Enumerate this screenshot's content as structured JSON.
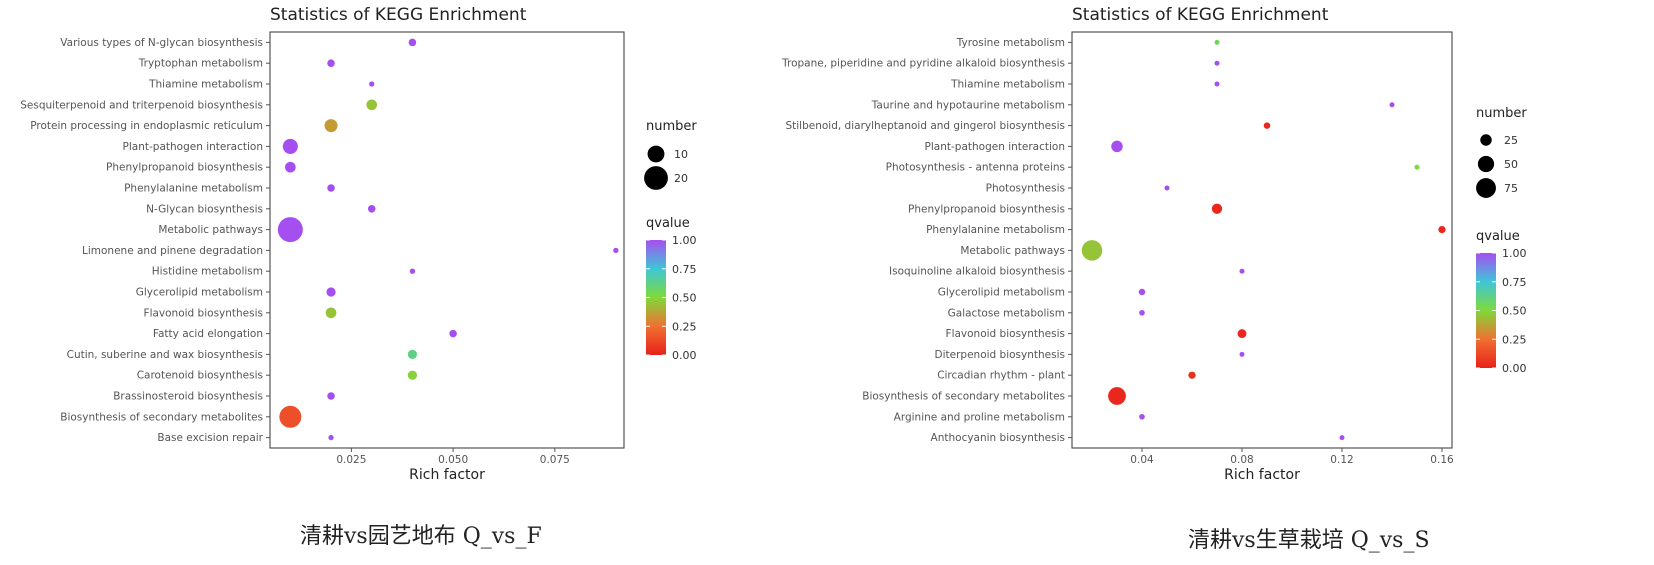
{
  "chart_data": [
    {
      "type": "scatter",
      "title": "Statistics of KEGG Enrichment",
      "xlabel": "Rich factor",
      "ylabel": "",
      "xlim": [
        0.005,
        0.092
      ],
      "xticks": [
        0.025,
        0.05,
        0.075
      ],
      "xtick_labels": [
        "0.025",
        "0.050",
        "0.075"
      ],
      "grid": false,
      "legend_placement": "right",
      "size_legend": {
        "title": "number",
        "values": [
          10,
          20
        ],
        "labels": [
          "10",
          "20"
        ]
      },
      "color_legend": {
        "title": "qvalue",
        "ticks": [
          1.0,
          0.75,
          0.5,
          0.25,
          0.0
        ],
        "labels": [
          "1.00",
          "0.75",
          "0.50",
          "0.25",
          "0.00"
        ]
      },
      "points": [
        {
          "term": "Various types of N-glycan biosynthesis",
          "rich_factor": 0.04,
          "number": 2,
          "qvalue": 1.0
        },
        {
          "term": "Tryptophan metabolism",
          "rich_factor": 0.02,
          "number": 2,
          "qvalue": 1.0
        },
        {
          "term": "Thiamine metabolism",
          "rich_factor": 0.03,
          "number": 1,
          "qvalue": 1.0
        },
        {
          "term": "Sesquiterpenoid and triterpenoid biosynthesis",
          "rich_factor": 0.03,
          "number": 4,
          "qvalue": 0.45
        },
        {
          "term": "Protein processing in endoplasmic reticulum",
          "rich_factor": 0.02,
          "number": 6,
          "qvalue": 0.35
        },
        {
          "term": "Plant-pathogen interaction",
          "rich_factor": 0.01,
          "number": 8,
          "qvalue": 1.0
        },
        {
          "term": "Phenylpropanoid biosynthesis",
          "rich_factor": 0.01,
          "number": 4,
          "qvalue": 1.0
        },
        {
          "term": "Phenylalanine metabolism",
          "rich_factor": 0.02,
          "number": 2,
          "qvalue": 1.0
        },
        {
          "term": "N-Glycan biosynthesis",
          "rich_factor": 0.03,
          "number": 2,
          "qvalue": 1.0
        },
        {
          "term": "Metabolic pathways",
          "rich_factor": 0.01,
          "number": 22,
          "qvalue": 1.0
        },
        {
          "term": "Limonene and pinene degradation",
          "rich_factor": 0.09,
          "number": 1,
          "qvalue": 1.0
        },
        {
          "term": "Histidine metabolism",
          "rich_factor": 0.04,
          "number": 1,
          "qvalue": 1.0
        },
        {
          "term": "Glycerolipid metabolism",
          "rich_factor": 0.02,
          "number": 3,
          "qvalue": 1.0
        },
        {
          "term": "Flavonoid biosynthesis",
          "rich_factor": 0.02,
          "number": 4,
          "qvalue": 0.45
        },
        {
          "term": "Fatty acid elongation",
          "rich_factor": 0.05,
          "number": 2,
          "qvalue": 1.0
        },
        {
          "term": "Cutin, suberine and wax biosynthesis",
          "rich_factor": 0.04,
          "number": 3,
          "qvalue": 0.62
        },
        {
          "term": "Carotenoid biosynthesis",
          "rich_factor": 0.04,
          "number": 3,
          "qvalue": 0.48
        },
        {
          "term": "Brassinosteroid biosynthesis",
          "rich_factor": 0.02,
          "number": 2,
          "qvalue": 1.0
        },
        {
          "term": "Biosynthesis of secondary metabolites",
          "rich_factor": 0.01,
          "number": 17,
          "qvalue": 0.15
        },
        {
          "term": "Base excision repair",
          "rich_factor": 0.02,
          "number": 1,
          "qvalue": 1.0
        }
      ]
    },
    {
      "type": "scatter",
      "title": "Statistics of KEGG Enrichment",
      "xlabel": "Rich factor",
      "ylabel": "",
      "xlim": [
        0.012,
        0.164
      ],
      "xticks": [
        0.04,
        0.08,
        0.12,
        0.16
      ],
      "xtick_labels": [
        "0.04",
        "0.08",
        "0.12",
        "0.16"
      ],
      "grid": false,
      "legend_placement": "right",
      "size_legend": {
        "title": "number",
        "values": [
          25,
          50,
          75
        ],
        "labels": [
          "25",
          "50",
          "75"
        ]
      },
      "color_legend": {
        "title": "qvalue",
        "ticks": [
          1.0,
          0.75,
          0.5,
          0.25,
          0.0
        ],
        "labels": [
          "1.00",
          "0.75",
          "0.50",
          "0.25",
          "0.00"
        ]
      },
      "points": [
        {
          "term": "Tyrosine metabolism",
          "rich_factor": 0.07,
          "number": 4,
          "qvalue": 0.55
        },
        {
          "term": "Tropane, piperidine and pyridine alkaloid biosynthesis",
          "rich_factor": 0.07,
          "number": 4,
          "qvalue": 1.0
        },
        {
          "term": "Thiamine metabolism",
          "rich_factor": 0.07,
          "number": 2,
          "qvalue": 1.0
        },
        {
          "term": "Taurine and hypotaurine metabolism",
          "rich_factor": 0.14,
          "number": 2,
          "qvalue": 1.0
        },
        {
          "term": "Stilbenoid, diarylheptanoid and gingerol biosynthesis",
          "rich_factor": 0.09,
          "number": 8,
          "qvalue": 0.02
        },
        {
          "term": "Plant-pathogen interaction",
          "rich_factor": 0.03,
          "number": 25,
          "qvalue": 1.0
        },
        {
          "term": "Photosynthesis - antenna proteins",
          "rich_factor": 0.15,
          "number": 2,
          "qvalue": 0.5
        },
        {
          "term": "Photosynthesis",
          "rich_factor": 0.05,
          "number": 4,
          "qvalue": 1.0
        },
        {
          "term": "Phenylpropanoid biosynthesis",
          "rich_factor": 0.07,
          "number": 20,
          "qvalue": 0.02
        },
        {
          "term": "Phenylalanine metabolism",
          "rich_factor": 0.16,
          "number": 10,
          "qvalue": 0.02
        },
        {
          "term": "Metabolic pathways",
          "rich_factor": 0.02,
          "number": 80,
          "qvalue": 0.45
        },
        {
          "term": "Isoquinoline alkaloid biosynthesis",
          "rich_factor": 0.08,
          "number": 4,
          "qvalue": 1.0
        },
        {
          "term": "Glycerolipid metabolism",
          "rich_factor": 0.04,
          "number": 8,
          "qvalue": 1.0
        },
        {
          "term": "Galactose metabolism",
          "rich_factor": 0.04,
          "number": 6,
          "qvalue": 1.0
        },
        {
          "term": "Flavonoid biosynthesis",
          "rich_factor": 0.08,
          "number": 15,
          "qvalue": 0.02
        },
        {
          "term": "Diterpenoid biosynthesis",
          "rich_factor": 0.08,
          "number": 4,
          "qvalue": 1.0
        },
        {
          "term": "Circadian rhythm - plant",
          "rich_factor": 0.06,
          "number": 10,
          "qvalue": 0.05
        },
        {
          "term": "Biosynthesis of secondary metabolites",
          "rich_factor": 0.03,
          "number": 60,
          "qvalue": 0.02
        },
        {
          "term": "Arginine and proline metabolism",
          "rich_factor": 0.04,
          "number": 6,
          "qvalue": 1.0
        },
        {
          "term": "Anthocyanin biosynthesis",
          "rich_factor": 0.12,
          "number": 3,
          "qvalue": 1.0
        }
      ]
    }
  ],
  "captions": [
    "清耕vs园艺地布 Q_vs_F",
    "清耕vs生草栽培 Q_vs_S"
  ],
  "colors": {
    "q0": "#e8211b",
    "q025": "#f07030",
    "q050": "#7fd93a",
    "q075": "#3ec6d8",
    "q100": "#a64ff0",
    "axis": "#333333",
    "tick": "#555555"
  }
}
